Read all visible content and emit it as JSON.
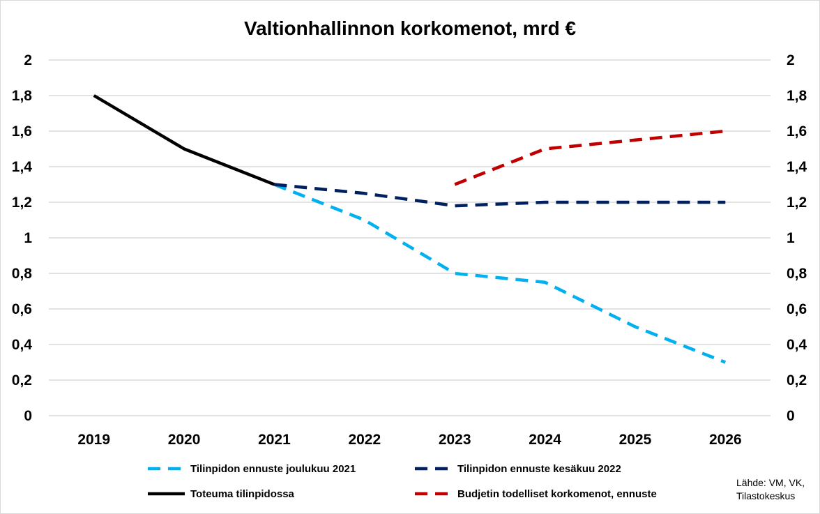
{
  "chart_data": {
    "type": "line",
    "title": "Valtionhallinnon korkomenot, mrd €",
    "categories": [
      "2019",
      "2020",
      "2021",
      "2022",
      "2023",
      "2024",
      "2025",
      "2026"
    ],
    "ylim": [
      0,
      2
    ],
    "yticks": [
      "0",
      "0,2",
      "0,4",
      "0,6",
      "0,8",
      "1",
      "1,2",
      "1,4",
      "1,6",
      "1,8",
      "2"
    ],
    "grid": true,
    "legend_position": "bottom",
    "series": [
      {
        "name": "Tilinpidon ennuste joulukuu 2021",
        "color": "#00b0f0",
        "dash": true,
        "values": [
          null,
          null,
          1.3,
          1.1,
          0.8,
          0.75,
          0.5,
          0.3
        ]
      },
      {
        "name": "Tilinpidon ennuste kesäkuu 2022",
        "color": "#002060",
        "dash": true,
        "values": [
          null,
          null,
          1.3,
          1.25,
          1.18,
          1.2,
          1.2,
          1.2
        ]
      },
      {
        "name": "Toteuma tilinpidossa",
        "color": "#000000",
        "dash": false,
        "values": [
          1.8,
          1.5,
          1.3,
          null,
          null,
          null,
          null,
          null
        ]
      },
      {
        "name": "Budjetin todelliset korkomenot, ennuste",
        "color": "#c00000",
        "dash": true,
        "values": [
          null,
          null,
          null,
          null,
          1.3,
          1.5,
          1.55,
          1.6
        ]
      }
    ],
    "source": [
      "Lähde: VM, VK,",
      "Tilastokeskus"
    ]
  }
}
